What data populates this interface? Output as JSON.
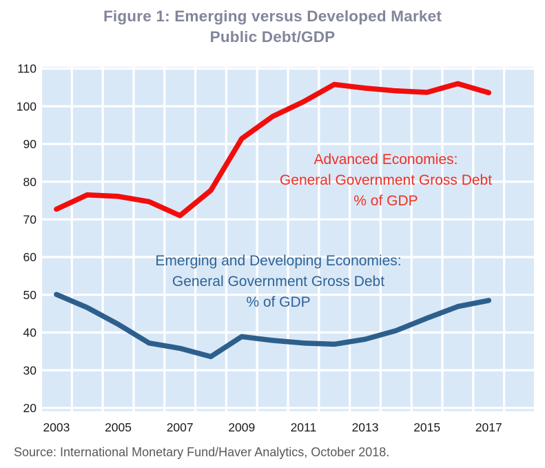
{
  "title": {
    "line1": "Figure 1: Emerging versus Developed Market",
    "line2": "Public Debt/GDP"
  },
  "source": "Source: International Monetary Fund/Haver Analytics, October 2018.",
  "colors": {
    "plot_background": "#D9E8F7",
    "gridline": "#FFFFFF",
    "advanced_line": "#F20D0D",
    "advanced_label": "#EF3124",
    "emerging_line": "#2D5F8C",
    "emerging_label": "#2F6396",
    "title_text": "#82859B",
    "tick_text": "#1B1B1D",
    "source_text": "#58595B"
  },
  "chart_data": {
    "type": "line",
    "x": [
      2003,
      2004,
      2005,
      2006,
      2007,
      2008,
      2009,
      2010,
      2011,
      2012,
      2013,
      2014,
      2015,
      2016,
      2017
    ],
    "series": [
      {
        "name": "Advanced Economies: General Government Gross Debt % of GDP",
        "color": "#F20D0D",
        "values": [
          72.7,
          76.5,
          76.1,
          74.7,
          71.0,
          77.7,
          91.4,
          97.3,
          101.2,
          105.8,
          104.8,
          104.1,
          103.7,
          106.0,
          103.6
        ]
      },
      {
        "name": "Emerging and Developing Economies: General Government Gross Debt % of GDP",
        "color": "#2D5F8C",
        "values": [
          50.1,
          46.6,
          42.2,
          37.2,
          35.8,
          33.6,
          38.9,
          37.9,
          37.2,
          36.9,
          38.2,
          40.5,
          43.8,
          46.9,
          48.5
        ]
      }
    ],
    "annotations": [
      {
        "series": "advanced",
        "lines": [
          "Advanced Economies:",
          "General Government Gross Debt",
          "% of GDP"
        ]
      },
      {
        "series": "emerging",
        "lines": [
          "Emerging and Developing Economies:",
          "General Government Gross Debt",
          "% of GDP"
        ]
      }
    ],
    "title": "Figure 1: Emerging versus Developed Market Public Debt/GDP",
    "xlabel": "",
    "ylabel": "",
    "ylim": [
      20,
      110
    ],
    "yticks": [
      110,
      100,
      90,
      80,
      70,
      60,
      50,
      40,
      30,
      20
    ],
    "xtick_labels": [
      "2003",
      "2005",
      "2007",
      "2009",
      "2011",
      "2013",
      "2015",
      "2017"
    ],
    "grid": true,
    "legend_position": "none"
  }
}
